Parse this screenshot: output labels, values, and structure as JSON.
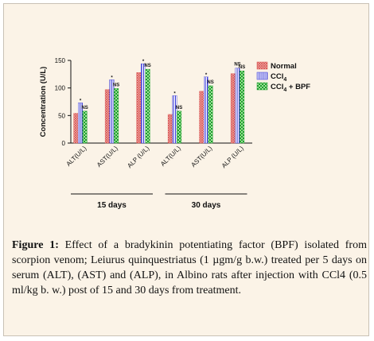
{
  "chart_data": {
    "type": "bar",
    "ylabel": "Concentration (U/L)",
    "ylim": [
      0,
      150
    ],
    "yticks": [
      0,
      50,
      100,
      150
    ],
    "grid": false,
    "legend_position": "top-right",
    "categories": [
      "ALT(U/L)",
      "AST(U/L)",
      "ALP (U/L)",
      "ALT(U/L)",
      "AST(U/L)",
      "ALP (U/L)"
    ],
    "groups": [
      {
        "label": "15 days",
        "categories": [
          0,
          1,
          2
        ]
      },
      {
        "label": "30 days",
        "categories": [
          3,
          4,
          5
        ]
      }
    ],
    "series": [
      {
        "name": "Normal",
        "values": [
          54,
          97,
          128,
          52,
          94,
          126
        ],
        "color": "#d9534f",
        "pattern": "crosshatch"
      },
      {
        "name": "CCl4",
        "legend_main": "CCl",
        "legend_sub": "4",
        "values": [
          73,
          115,
          144,
          86,
          120,
          136
        ],
        "color": "#3b3bd8",
        "pattern": "vertical-stripes"
      },
      {
        "name": "CCl4 + BPF",
        "legend_main": "CCl",
        "legend_sub": "4",
        "legend_tail": " + BPF",
        "values": [
          58,
          99,
          134,
          58,
          104,
          131
        ],
        "color": "#1e9e2e",
        "pattern": "checker"
      }
    ],
    "annotations": [
      {
        "category": 0,
        "series": 1,
        "text": "*"
      },
      {
        "category": 0,
        "series": 2,
        "text": "NS"
      },
      {
        "category": 1,
        "series": 1,
        "text": "*"
      },
      {
        "category": 1,
        "series": 2,
        "text": "NS"
      },
      {
        "category": 2,
        "series": 1,
        "text": "*"
      },
      {
        "category": 2,
        "series": 2,
        "text": "NS"
      },
      {
        "category": 3,
        "series": 1,
        "text": "*"
      },
      {
        "category": 3,
        "series": 2,
        "text": "NS"
      },
      {
        "category": 4,
        "series": 1,
        "text": "*"
      },
      {
        "category": 4,
        "series": 2,
        "text": "NS"
      },
      {
        "category": 5,
        "series": 1,
        "text": "NS"
      },
      {
        "category": 5,
        "series": 2,
        "text": "NS"
      }
    ]
  },
  "caption": {
    "label": "Figure 1:",
    "text": " Effect of a bradykinin potentiating factor (BPF) isolated from scorpion venom; Leiurus quinquestriatus (1 µgm/g b.w.) treated per 5 days on serum (ALT), (AST) and (ALP), in Albino rats after injection with CCl4 (0.5 ml/kg b. w.) post of 15 and 30 days from treatment."
  }
}
